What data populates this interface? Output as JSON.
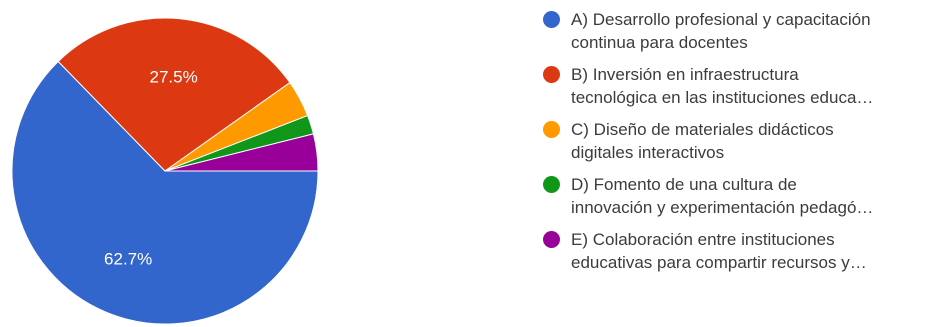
{
  "chart_data": {
    "type": "pie",
    "categories": [
      "A) Desarrollo profesional y capacitación continua para docentes",
      "B) Inversión en infraestructura tecnológica en las instituciones educa…",
      "C) Diseño de materiales didácticos digitales interactivos",
      "D) Fomento de una cultura de innovación y experimentación pedagó…",
      "E) Colaboración entre instituciones educativas para compartir recursos y…"
    ],
    "values": [
      62.7,
      27.5,
      3.9,
      2.0,
      3.9
    ],
    "colors": [
      "#3366cc",
      "#dc3912",
      "#ff9900",
      "#109618",
      "#990099"
    ],
    "slice_labels": [
      "62.7%",
      "27.5%",
      "",
      "",
      ""
    ],
    "legend_placement": "right",
    "legend": [
      {
        "line1": "A) Desarrollo profesional y capacitación",
        "line2": "continua para docentes",
        "color": "#3366cc"
      },
      {
        "line1": "B) Inversión en infraestructura",
        "line2": "tecnológica en las instituciones educa…",
        "color": "#dc3912"
      },
      {
        "line1": "C) Diseño de materiales didácticos",
        "line2": "digitales interactivos",
        "color": "#ff9900"
      },
      {
        "line1": "D) Fomento de una cultura de",
        "line2": "innovación y experimentación pedagó…",
        "color": "#109618"
      },
      {
        "line1": "E) Colaboración entre instituciones",
        "line2": "educativas para compartir recursos y…",
        "color": "#990099"
      }
    ]
  }
}
